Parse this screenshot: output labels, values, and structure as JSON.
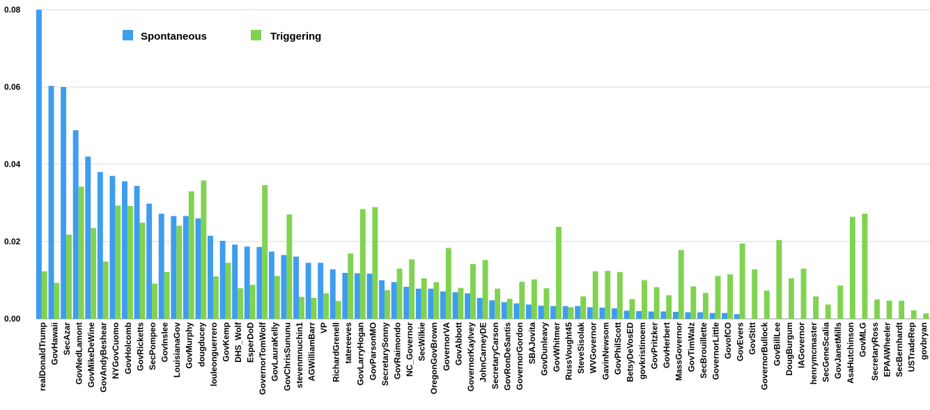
{
  "chart_data": {
    "type": "bar",
    "title": "",
    "xlabel": "",
    "ylabel": "",
    "ylim": [
      0,
      0.08
    ],
    "yticks": [
      "0.00",
      "0.02",
      "0.04",
      "0.06",
      "0.08"
    ],
    "grid": true,
    "legend_position": "top-left",
    "categories": [
      "realDonaldTrump",
      "GovHawaii",
      "SecAzar",
      "GovNedLamont",
      "GovMikeDeWine",
      "GovAndyBeshear",
      "NYGovCuomo",
      "GovHolcomb",
      "GovRicketts",
      "SecPompeo",
      "GovInslee",
      "LouisianaGov",
      "GovMurphy",
      "dougducey",
      "louleonguerrero",
      "GovKemp",
      "DHS_Wolf",
      "EsperDoD",
      "GovernorTomWolf",
      "GovLauraKelly",
      "GovChrisSununu",
      "stevenmnuchin1",
      "AGWilliamBarr",
      "VP",
      "RichardGrenell",
      "tatereeves",
      "GovLarryHogan",
      "GovParsonMO",
      "SecretarySonny",
      "GovRaimondo",
      "NC_Governor",
      "SecWilkie",
      "OregonGovBrown",
      "GovernorVA",
      "GovAbbott",
      "GovernorKayIvey",
      "JohnCarneyDE",
      "SecretaryCarson",
      "GovRonDeSantis",
      "GovernorGordon",
      "SBAJovita",
      "GovDunleavy",
      "GovWhitmer",
      "RussVought45",
      "SteveSisolak",
      "WVGovernor",
      "GavinNewsom",
      "GovPhilScott",
      "BetsyDeVosED",
      "govkristinoem",
      "GovPritzker",
      "GovHerbert",
      "MassGovernor",
      "GovTimWalz",
      "SecBrouillette",
      "GovernorLittle",
      "GovofCO",
      "GovEvers",
      "GovStitt",
      "GovernorBullock",
      "GovBillLee",
      "DougBurgum",
      "IAGovernor",
      "henrymcmaster",
      "SecGeneScalia",
      "GovJanetMills",
      "AsaHutchinson",
      "GovMLG",
      "SecretaryRoss",
      "EPAAWheeler",
      "SecBernhardt",
      "USTradeRep",
      "govbryan"
    ],
    "series": [
      {
        "name": "Spontaneous",
        "color": "#3d9df0",
        "values": [
          0.08,
          0.0603,
          0.06,
          0.0488,
          0.042,
          0.038,
          0.037,
          0.0356,
          0.0344,
          0.0298,
          0.0272,
          0.0266,
          0.0266,
          0.026,
          0.0215,
          0.0202,
          0.0192,
          0.0187,
          0.0186,
          0.0174,
          0.0165,
          0.0161,
          0.0145,
          0.0145,
          0.0128,
          0.0119,
          0.0118,
          0.0117,
          0.01,
          0.0095,
          0.0083,
          0.0078,
          0.0078,
          0.0071,
          0.0069,
          0.0066,
          0.0054,
          0.0048,
          0.0043,
          0.004,
          0.0037,
          0.0034,
          0.0033,
          0.0033,
          0.0033,
          0.003,
          0.0029,
          0.0027,
          0.0021,
          0.002,
          0.0019,
          0.0019,
          0.0018,
          0.0017,
          0.0017,
          0.0015,
          0.0015,
          0.0012,
          0,
          0,
          0,
          0,
          0,
          0,
          0,
          0,
          0,
          0,
          0,
          0,
          0,
          0,
          0
        ]
      },
      {
        "name": "Triggering",
        "color": "#80d350",
        "values": [
          0.0123,
          0.0093,
          0.0218,
          0.0342,
          0.0235,
          0.0148,
          0.0293,
          0.0292,
          0.0249,
          0.0091,
          0.0121,
          0.0241,
          0.033,
          0.0358,
          0.011,
          0.0145,
          0.0079,
          0.0088,
          0.0346,
          0.0111,
          0.027,
          0.0057,
          0.0054,
          0.0066,
          0.0046,
          0.0169,
          0.0284,
          0.0289,
          0.0074,
          0.013,
          0.0154,
          0.0105,
          0.0095,
          0.0183,
          0.008,
          0.0142,
          0.0152,
          0.0078,
          0.0052,
          0.0096,
          0.0102,
          0.0079,
          0.0238,
          0.003,
          0.0058,
          0.0123,
          0.0124,
          0.0121,
          0.0051,
          0.01,
          0.0082,
          0.0061,
          0.0178,
          0.0084,
          0.0067,
          0.0111,
          0.0115,
          0.0195,
          0.0128,
          0.0073,
          0.0204,
          0.0105,
          0.013,
          0.0058,
          0.0037,
          0.0086,
          0.0264,
          0.0272,
          0.005,
          0.0047,
          0.0047,
          0.0022,
          0.0014
        ]
      }
    ]
  }
}
